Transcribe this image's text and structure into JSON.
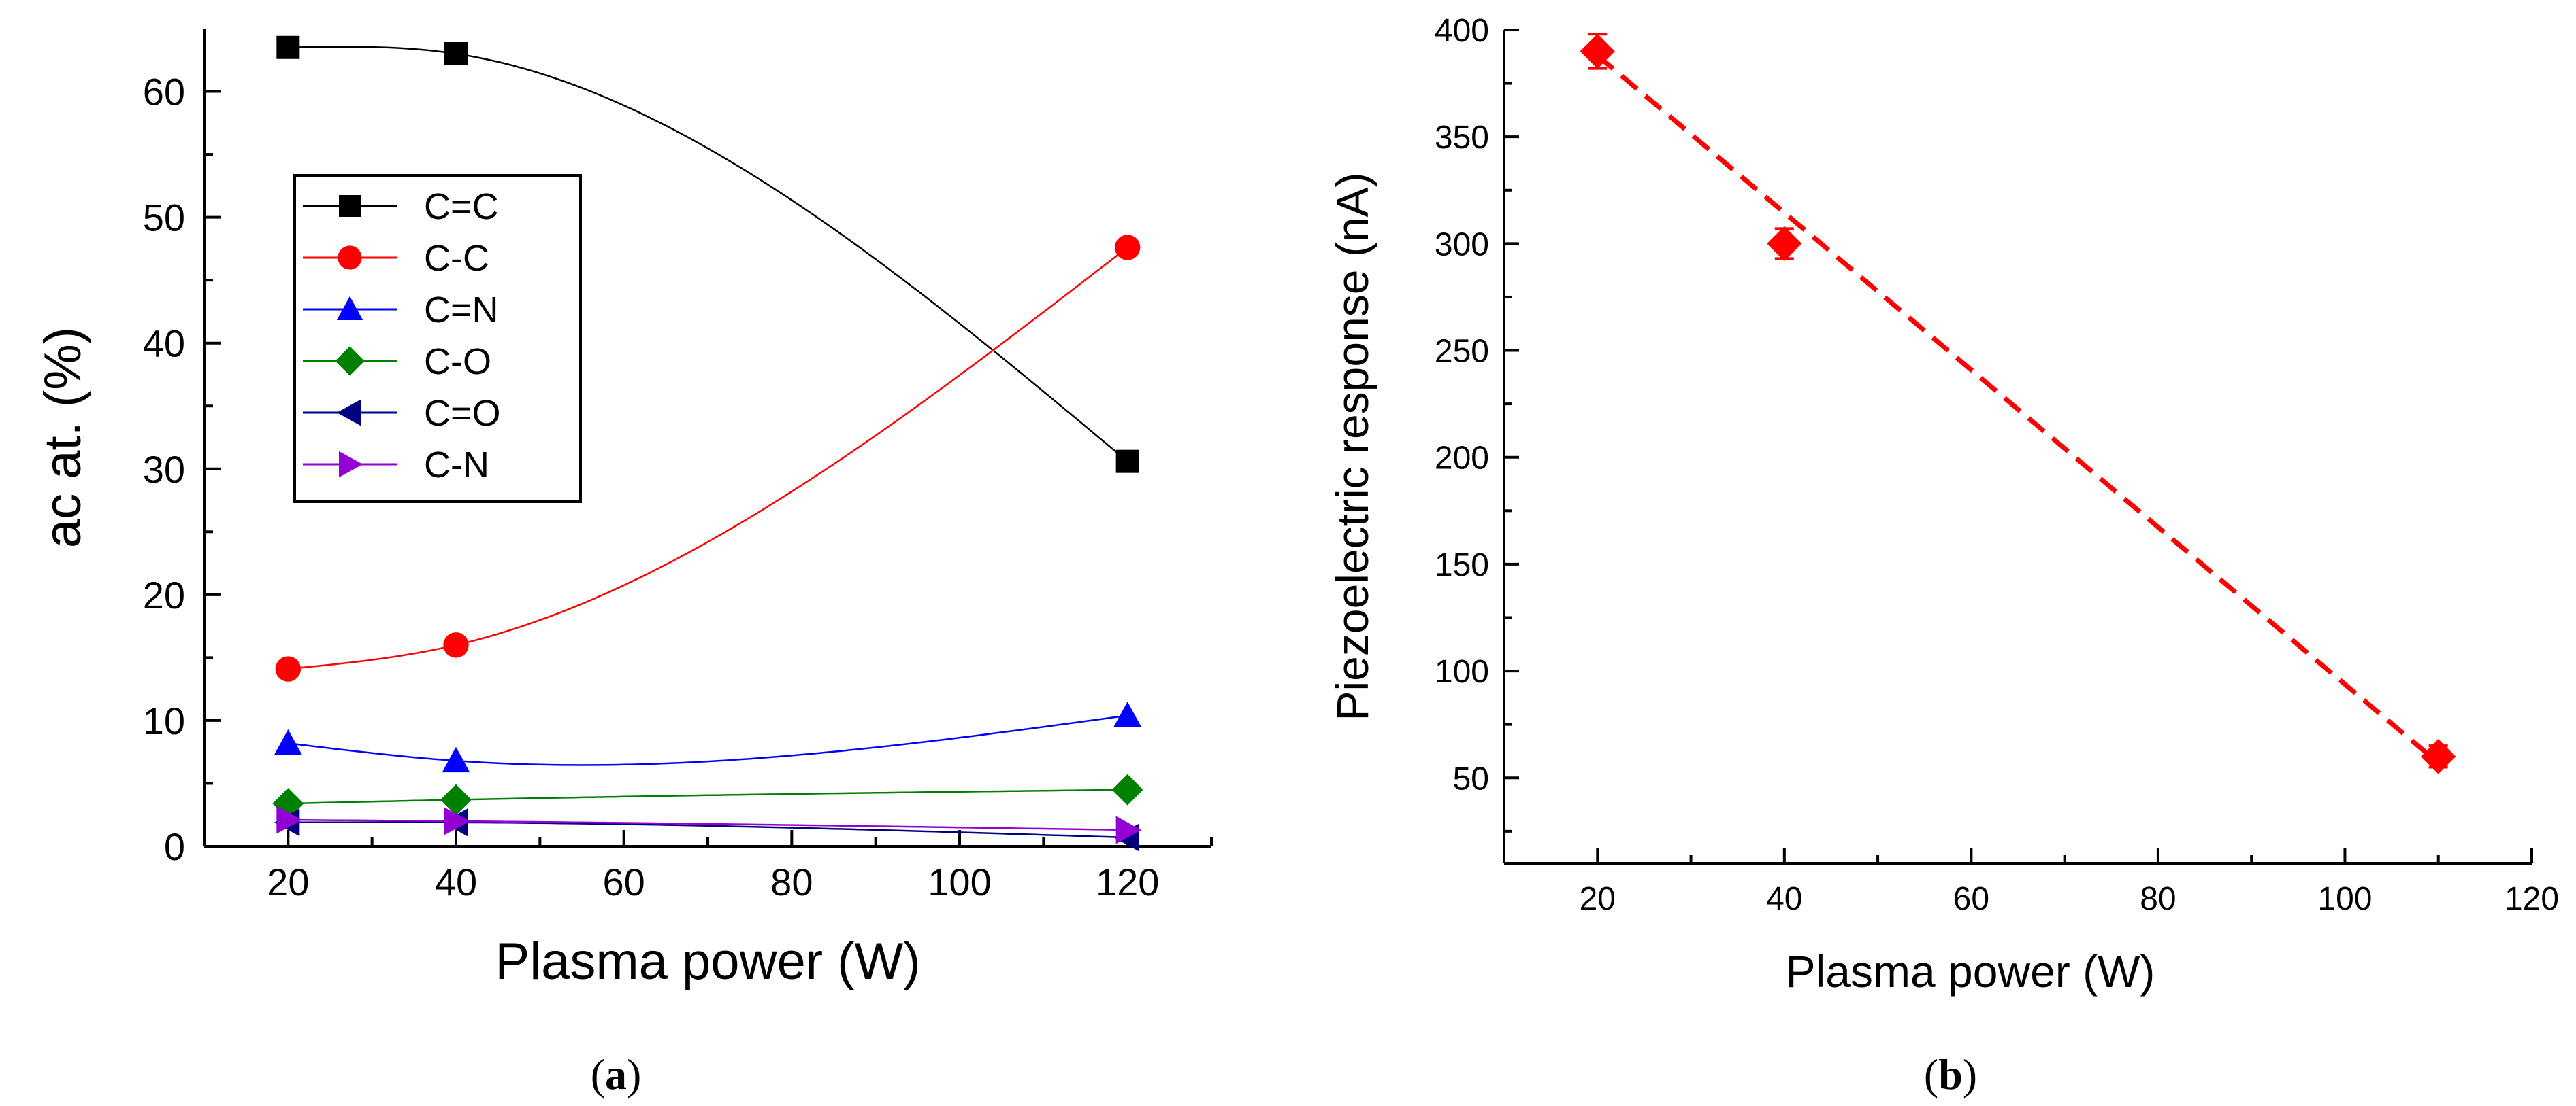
{
  "chart_data": [
    {
      "type": "line",
      "panel_label": {
        "open": "(",
        "letter": "a",
        "close": ")"
      },
      "xlabel": "Plasma power (W)",
      "ylabel": "ac at. (%)",
      "xlim": [
        10,
        130
      ],
      "ylim": [
        0,
        65
      ],
      "xticks": [
        20,
        40,
        60,
        80,
        100,
        120
      ],
      "yticks": [
        0,
        10,
        20,
        30,
        40,
        50,
        60
      ],
      "x": [
        20,
        40,
        120
      ],
      "legend_position": "upper-left",
      "series": [
        {
          "name": "C=C",
          "marker": "square",
          "color": "#000000",
          "values": [
            63.5,
            63.0,
            30.6
          ]
        },
        {
          "name": "C-C",
          "marker": "circle",
          "color": "#ff0000",
          "values": [
            14.1,
            16.0,
            47.6
          ]
        },
        {
          "name": "C=N",
          "marker": "triangle-up",
          "color": "#0000ff",
          "values": [
            8.2,
            6.8,
            10.4
          ]
        },
        {
          "name": "C-O",
          "marker": "diamond",
          "color": "#008000",
          "values": [
            3.4,
            3.7,
            4.5
          ]
        },
        {
          "name": "C=O",
          "marker": "triangle-left",
          "color": "#000080",
          "values": [
            1.9,
            1.9,
            0.7
          ]
        },
        {
          "name": "C-N",
          "marker": "triangle-right",
          "color": "#9400d3",
          "values": [
            2.1,
            2.0,
            1.3
          ]
        }
      ]
    },
    {
      "type": "scatter",
      "panel_label": {
        "open": "(",
        "letter": "b",
        "close": ")"
      },
      "xlabel": "Plasma power (W)",
      "ylabel": "Piezoelectric response (nA)",
      "xlim": [
        10,
        120
      ],
      "ylim": [
        10,
        400
      ],
      "xticks": [
        20,
        40,
        60,
        80,
        100,
        120
      ],
      "yticks": [
        50,
        100,
        150,
        200,
        250,
        300,
        350,
        400
      ],
      "series": [
        {
          "name": "Piezoelectric response",
          "marker": "diamond",
          "color": "#ff0000",
          "x": [
            20,
            40,
            110
          ],
          "y": [
            390,
            300,
            60
          ],
          "error": [
            8,
            7,
            5
          ]
        }
      ],
      "fit_line": {
        "style": "dashed",
        "color": "#ff0000",
        "x": [
          20,
          110
        ],
        "y": [
          388,
          57
        ]
      }
    }
  ]
}
